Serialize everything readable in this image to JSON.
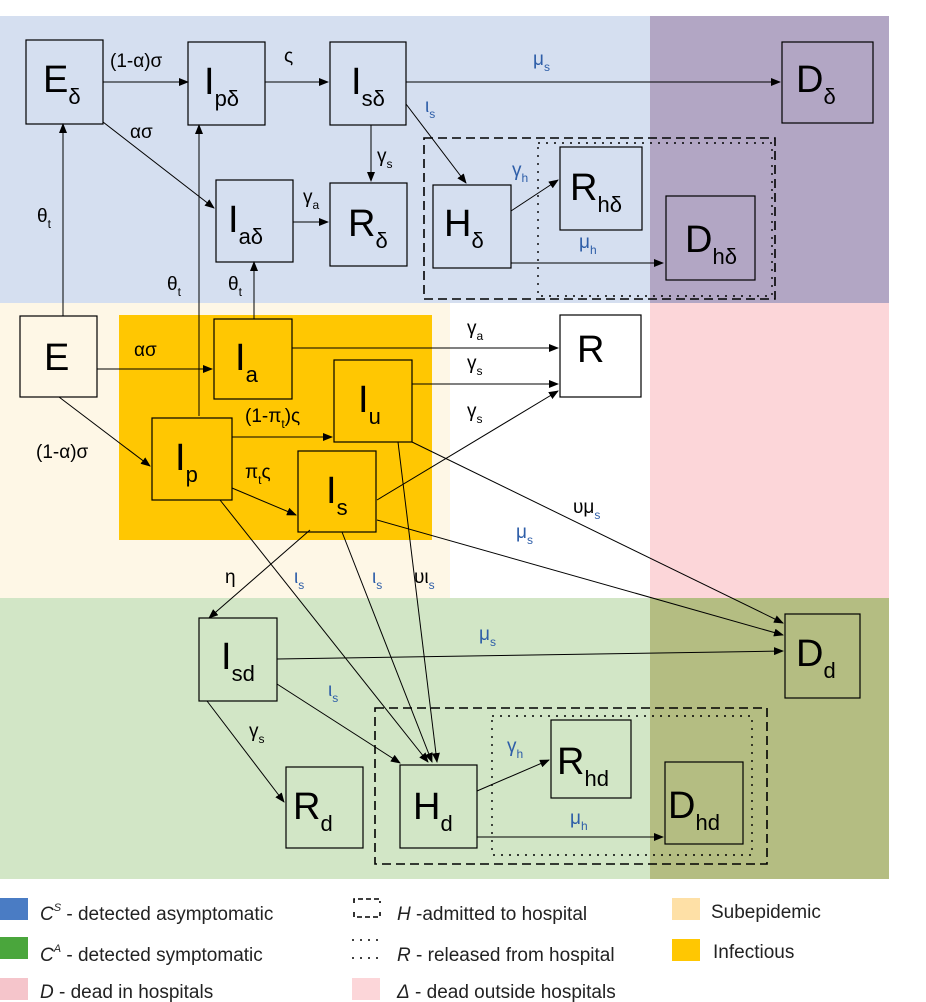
{
  "nodes": {
    "E_delta": {
      "main": "E",
      "sub": "δ"
    },
    "Ip_delta": {
      "main": "I",
      "sub": "pδ"
    },
    "Is_delta": {
      "main": "I",
      "sub": "sδ"
    },
    "D_delta": {
      "main": "D",
      "sub": "δ"
    },
    "Ia_delta": {
      "main": "I",
      "sub": "aδ"
    },
    "R_delta": {
      "main": "R",
      "sub": "δ"
    },
    "H_delta": {
      "main": "H",
      "sub": "δ"
    },
    "Rh_delta": {
      "main": "R",
      "sub": "hδ"
    },
    "Dh_delta": {
      "main": "D",
      "sub": "hδ"
    },
    "E": {
      "main": "E",
      "sub": ""
    },
    "Ia": {
      "main": "I",
      "sub": "a"
    },
    "Iu": {
      "main": "I",
      "sub": "u"
    },
    "Ip": {
      "main": "I",
      "sub": "p"
    },
    "Is": {
      "main": "I",
      "sub": "s"
    },
    "R": {
      "main": "R",
      "sub": ""
    },
    "Isd": {
      "main": "I",
      "sub": "sd"
    },
    "Dd": {
      "main": "D",
      "sub": "d"
    },
    "Rd": {
      "main": "R",
      "sub": "d"
    },
    "Hd": {
      "main": "H",
      "sub": "d"
    },
    "Rhd": {
      "main": "R",
      "sub": "hd"
    },
    "Dhd": {
      "main": "D",
      "sub": "hd"
    }
  },
  "edge_labels": {
    "e1": {
      "main": "(1-α)σ",
      "sub": ""
    },
    "e2": {
      "main": "ς",
      "sub": ""
    },
    "e3": {
      "main": "μ",
      "sub": "s"
    },
    "e4": {
      "main": "ασ",
      "sub": ""
    },
    "e5": {
      "main": "ι",
      "sub": "s"
    },
    "e6": {
      "main": "γ",
      "sub": "s"
    },
    "e7": {
      "main": "θ",
      "sub": "t"
    },
    "e8": {
      "main": "γ",
      "sub": "a"
    },
    "e9": {
      "main": "γ",
      "sub": "h"
    },
    "e10": {
      "main": "μ",
      "sub": "h"
    },
    "e11": {
      "main": "θ",
      "sub": "t"
    },
    "e12": {
      "main": "θ",
      "sub": "t"
    },
    "e13": {
      "main": "ασ",
      "sub": ""
    },
    "e14": {
      "main": "γ",
      "sub": "a"
    },
    "e15": {
      "main": "γ",
      "sub": "s"
    },
    "e16": {
      "main": "γ",
      "sub": "s"
    },
    "e17": {
      "main": "(1-α)σ",
      "sub": ""
    },
    "e18": {
      "main": "(1-π",
      "sub": "t"
    },
    "e18b": {
      "main": ")ς",
      "sub": ""
    },
    "e19": {
      "main": "π",
      "sub": "t"
    },
    "e19b": {
      "main": "ς",
      "sub": ""
    },
    "e20": {
      "main": "υμ",
      "sub": "s"
    },
    "e21": {
      "main": "μ",
      "sub": "s"
    },
    "e22": {
      "main": "η",
      "sub": ""
    },
    "e23": {
      "main": "ι",
      "sub": "s"
    },
    "e24": {
      "main": "ι",
      "sub": "s"
    },
    "e25": {
      "main": "υι",
      "sub": "s"
    },
    "e26": {
      "main": "μ",
      "sub": "s"
    },
    "e27": {
      "main": "ι",
      "sub": "s"
    },
    "e28": {
      "main": "γ",
      "sub": "s"
    },
    "e29": {
      "main": "γ",
      "sub": "h"
    },
    "e30": {
      "main": "μ",
      "sub": "h"
    }
  },
  "legend": {
    "cs": {
      "sym": "C",
      "sup": "S",
      "text": " - detected asymptomatic"
    },
    "ca": {
      "sym": "C",
      "sup": "A",
      "text": " - detected  symptomatic"
    },
    "d": {
      "sym": "D",
      "text": " - dead in hospitals"
    },
    "h": {
      "sym": "H",
      "text": " -admitted to hospital"
    },
    "r": {
      "sym": "R",
      "text": " - released from hospital"
    },
    "delta": {
      "sym": "Δ",
      "text": " - dead outside hospitals"
    },
    "sub": {
      "text": "Subepidemic"
    },
    "inf": {
      "text": "Infectious"
    }
  },
  "colors": {
    "detected_asym_region": "#d5dff0",
    "detected_sym_region": "#d2e6c6",
    "dead_hosp_region": "#fcd6d9",
    "subepidemic_region": "#fef7e6",
    "infectious_region": "#ffc702",
    "legend_blue": "#4a7cc4",
    "legend_green": "#4aa63c",
    "legend_pink": "#f5c5cb",
    "legend_lightpink": "#fcd6d9",
    "legend_lightorange": "#fee0a6",
    "legend_orange": "#ffc702",
    "label_blue": "#2e5ea8"
  }
}
